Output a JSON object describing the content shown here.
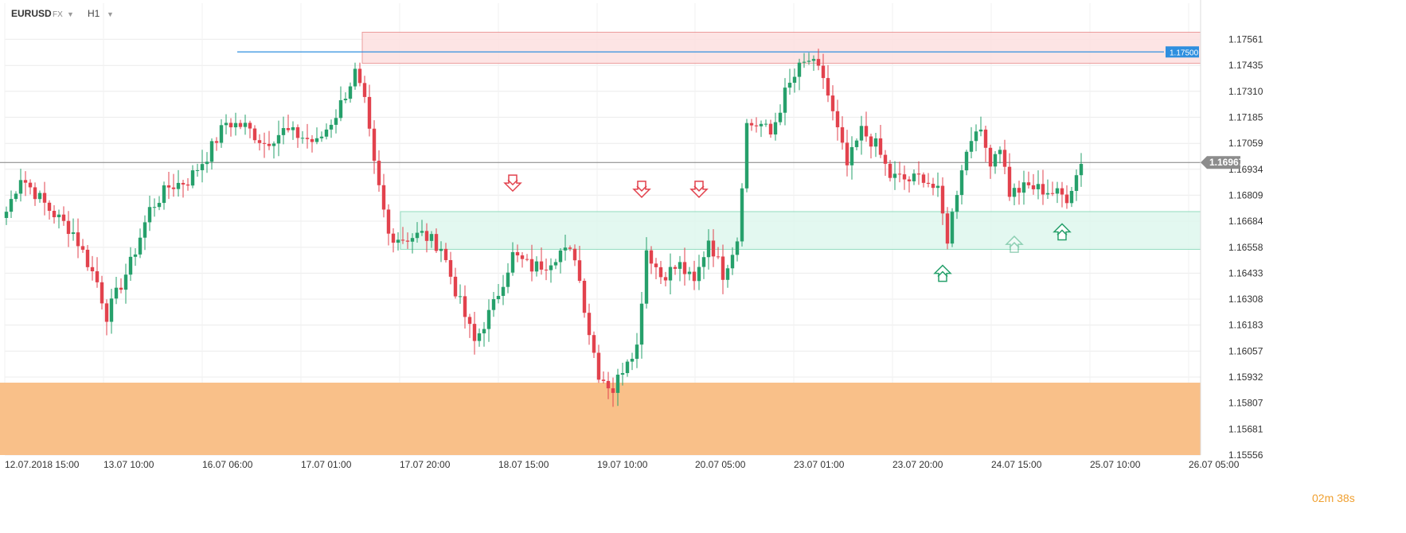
{
  "header": {
    "symbol": "EURUSD",
    "market": "FX",
    "timeframe": "H1"
  },
  "timer": "02m 38s",
  "colors": {
    "up": "#26a06b",
    "down": "#e2424d",
    "resistance_zone": "#fde0e0",
    "support_zone": "#dff7ee",
    "demand_zone": "#f9c089",
    "level_line": "#2f8fdf",
    "current_line": "#808080"
  },
  "chart_data": {
    "type": "candlestick",
    "symbol": "EURUSD",
    "timeframe": "H1",
    "ylim": [
      1.15556,
      1.1762
    ],
    "y_ticks": [
      "1.17561",
      "1.17435",
      "1.17310",
      "1.17185",
      "1.17059",
      "1.16934",
      "1.16809",
      "1.16684",
      "1.16558",
      "1.16433",
      "1.16308",
      "1.16183",
      "1.16057",
      "1.15932",
      "1.15807",
      "1.15681",
      "1.15556"
    ],
    "x_ticks": [
      "12.07.2018  15:00",
      "13.07  10:00",
      "16.07  06:00",
      "17.07  01:00",
      "17.07  20:00",
      "18.07  15:00",
      "19.07  10:00",
      "20.07  05:00",
      "23.07  01:00",
      "23.07  20:00",
      "24.07  15:00",
      "25.07  10:00",
      "26.07  05:00"
    ],
    "horizontal_line": {
      "price": 1.175,
      "label": "1.17500"
    },
    "current_price": {
      "price": 1.16967,
      "label": "1.16967"
    },
    "zones": [
      {
        "type": "resistance",
        "top": 1.17595,
        "bottom": 1.17445,
        "start_index": 75,
        "end_index": 251
      },
      {
        "type": "support",
        "top": 1.1673,
        "bottom": 1.16548,
        "start_index": 83,
        "end_index": 253
      },
      {
        "type": "demand",
        "top": 1.15905,
        "bottom": 1.15556,
        "start_index": 0,
        "end_index": 253
      }
    ],
    "arrows": [
      {
        "direction": "down",
        "index": 106,
        "price": 1.1686,
        "style": "outline"
      },
      {
        "direction": "down",
        "index": 133,
        "price": 1.1683,
        "style": "outline"
      },
      {
        "direction": "down",
        "index": 145,
        "price": 1.1683,
        "style": "outline"
      },
      {
        "direction": "up",
        "index": 196,
        "price": 1.1644,
        "style": "outline"
      },
      {
        "direction": "up",
        "index": 211,
        "price": 1.1658,
        "style": "faded"
      },
      {
        "direction": "up",
        "index": 221,
        "price": 1.1664,
        "style": "outline"
      }
    ],
    "anchors": [
      {
        "index": 0,
        "price": 1.1673
      },
      {
        "index": 3,
        "price": 1.169
      },
      {
        "index": 9,
        "price": 1.1674
      },
      {
        "index": 14,
        "price": 1.1663
      },
      {
        "index": 19,
        "price": 1.1639
      },
      {
        "index": 21,
        "price": 1.1623
      },
      {
        "index": 26,
        "price": 1.1648
      },
      {
        "index": 30,
        "price": 1.1674
      },
      {
        "index": 34,
        "price": 1.1685
      },
      {
        "index": 38,
        "price": 1.1688
      },
      {
        "index": 42,
        "price": 1.17
      },
      {
        "index": 46,
        "price": 1.1716
      },
      {
        "index": 50,
        "price": 1.1714
      },
      {
        "index": 54,
        "price": 1.1706
      },
      {
        "index": 58,
        "price": 1.1712
      },
      {
        "index": 62,
        "price": 1.1709
      },
      {
        "index": 65,
        "price": 1.1706
      },
      {
        "index": 69,
        "price": 1.172
      },
      {
        "index": 71,
        "price": 1.173
      },
      {
        "index": 73,
        "price": 1.174
      },
      {
        "index": 75,
        "price": 1.1725
      },
      {
        "index": 77,
        "price": 1.1695
      },
      {
        "index": 80,
        "price": 1.1662
      },
      {
        "index": 83,
        "price": 1.166
      },
      {
        "index": 87,
        "price": 1.1662
      },
      {
        "index": 91,
        "price": 1.1656
      },
      {
        "index": 94,
        "price": 1.1635
      },
      {
        "index": 98,
        "price": 1.161
      },
      {
        "index": 102,
        "price": 1.1628
      },
      {
        "index": 106,
        "price": 1.1652
      },
      {
        "index": 110,
        "price": 1.1646
      },
      {
        "index": 113,
        "price": 1.1648
      },
      {
        "index": 116,
        "price": 1.1654
      },
      {
        "index": 119,
        "price": 1.1652
      },
      {
        "index": 122,
        "price": 1.1615
      },
      {
        "index": 124,
        "price": 1.1595
      },
      {
        "index": 127,
        "price": 1.1587
      },
      {
        "index": 130,
        "price": 1.1603
      },
      {
        "index": 132,
        "price": 1.1608
      },
      {
        "index": 134,
        "price": 1.1655
      },
      {
        "index": 137,
        "price": 1.1642
      },
      {
        "index": 141,
        "price": 1.1647
      },
      {
        "index": 144,
        "price": 1.1638
      },
      {
        "index": 147,
        "price": 1.166
      },
      {
        "index": 150,
        "price": 1.1643
      },
      {
        "index": 153,
        "price": 1.166
      },
      {
        "index": 155,
        "price": 1.1715
      },
      {
        "index": 158,
        "price": 1.1715
      },
      {
        "index": 160,
        "price": 1.171
      },
      {
        "index": 163,
        "price": 1.173
      },
      {
        "index": 166,
        "price": 1.1742
      },
      {
        "index": 168,
        "price": 1.1746
      },
      {
        "index": 171,
        "price": 1.1738
      },
      {
        "index": 173,
        "price": 1.172
      },
      {
        "index": 176,
        "price": 1.1695
      },
      {
        "index": 179,
        "price": 1.1712
      },
      {
        "index": 182,
        "price": 1.1705
      },
      {
        "index": 185,
        "price": 1.169
      },
      {
        "index": 189,
        "price": 1.1688
      },
      {
        "index": 192,
        "price": 1.169
      },
      {
        "index": 195,
        "price": 1.1682
      },
      {
        "index": 197,
        "price": 1.166
      },
      {
        "index": 200,
        "price": 1.1695
      },
      {
        "index": 203,
        "price": 1.1715
      },
      {
        "index": 206,
        "price": 1.1698
      },
      {
        "index": 208,
        "price": 1.1705
      },
      {
        "index": 210,
        "price": 1.1682
      },
      {
        "index": 214,
        "price": 1.1685
      },
      {
        "index": 218,
        "price": 1.1683
      },
      {
        "index": 222,
        "price": 1.168
      },
      {
        "index": 225,
        "price": 1.1696
      }
    ]
  }
}
